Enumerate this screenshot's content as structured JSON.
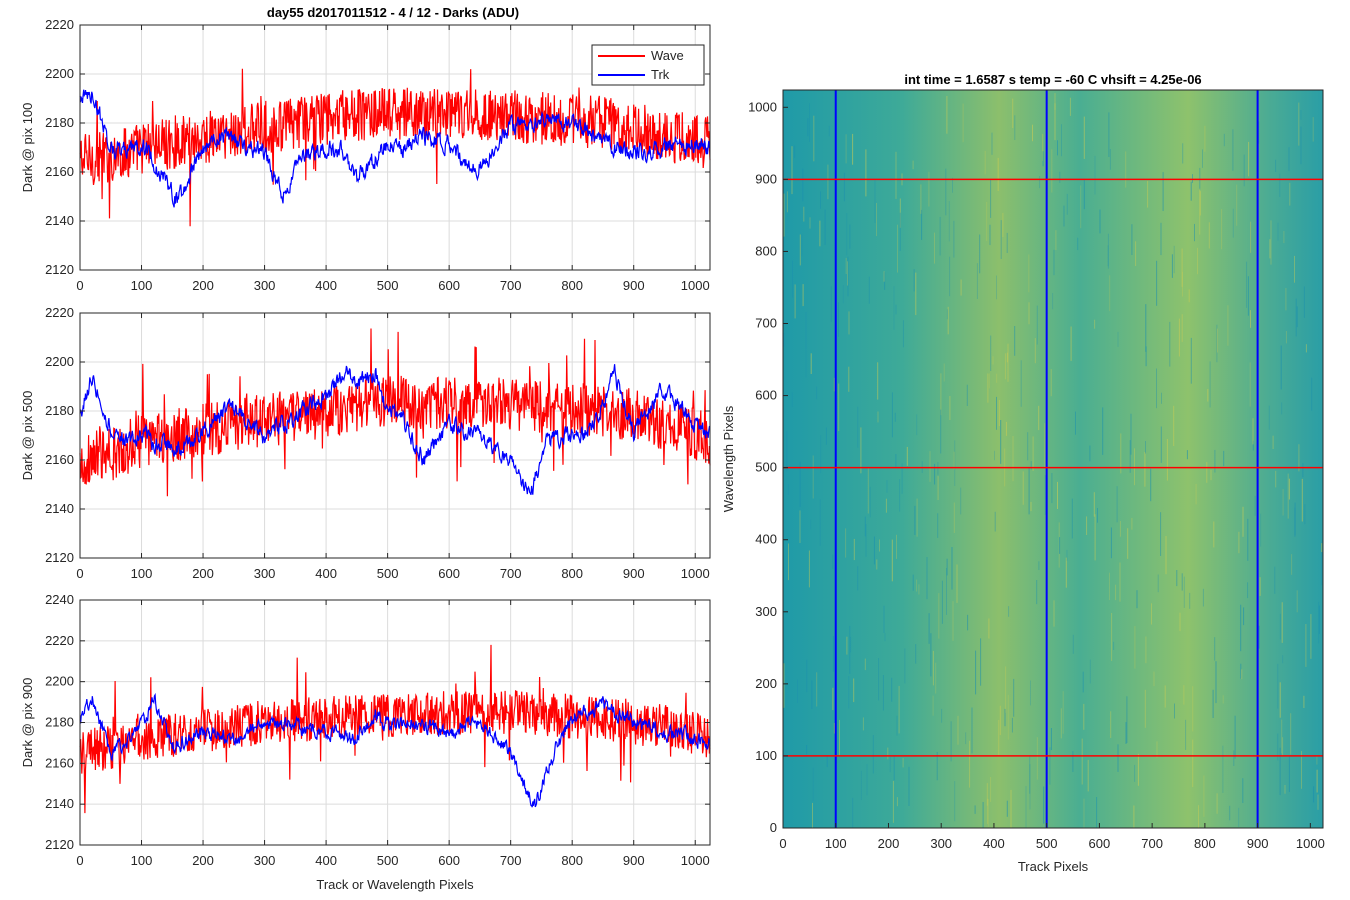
{
  "figure": {
    "title": "day55 d2017011512 - 4 / 12 - Darks (ADU)",
    "colors": {
      "wave": "#ff0000",
      "trk": "#0000ff",
      "axis": "#262626",
      "grid": "#dcdcdc",
      "image_low": "#1f9aa8",
      "image_high": "#b8c45a"
    }
  },
  "chart_data": [
    {
      "type": "line",
      "title": "day55 d2017011512 - 4 / 12 - Darks (ADU)",
      "xlabel": "",
      "ylabel": "Dark @ pix 100",
      "xlim": [
        0,
        1024
      ],
      "ylim": [
        2120,
        2220
      ],
      "xticks": [
        0,
        100,
        200,
        300,
        400,
        500,
        600,
        700,
        800,
        900,
        1000
      ],
      "yticks": [
        2120,
        2140,
        2160,
        2180,
        2200,
        2220
      ],
      "grid": true,
      "legend": {
        "placement": "top-right",
        "entries": [
          "Wave",
          "Trk"
        ]
      },
      "series": [
        {
          "name": "Wave",
          "color": "#ff0000",
          "x": [
            0,
            50,
            100,
            150,
            200,
            250,
            300,
            350,
            400,
            450,
            500,
            550,
            600,
            650,
            700,
            750,
            800,
            850,
            900,
            950,
            1024
          ],
          "values": [
            2165,
            2166,
            2170,
            2172,
            2174,
            2176,
            2178,
            2180,
            2182,
            2183,
            2184,
            2183,
            2184,
            2183,
            2183,
            2182,
            2181,
            2180,
            2178,
            2175,
            2172
          ]
        },
        {
          "name": "Trk",
          "color": "#0000ff",
          "x": [
            0,
            20,
            50,
            80,
            100,
            130,
            160,
            200,
            230,
            260,
            300,
            330,
            360,
            400,
            430,
            450,
            480,
            500,
            520,
            550,
            600,
            620,
            650,
            700,
            750,
            800,
            850,
            900,
            950,
            1000,
            1024
          ],
          "values": [
            2190,
            2192,
            2170,
            2168,
            2172,
            2160,
            2148,
            2170,
            2175,
            2172,
            2168,
            2150,
            2165,
            2170,
            2168,
            2158,
            2165,
            2172,
            2168,
            2175,
            2172,
            2165,
            2162,
            2178,
            2182,
            2180,
            2172,
            2168,
            2170,
            2172,
            2170
          ]
        }
      ]
    },
    {
      "type": "line",
      "xlabel": "",
      "ylabel": "Dark @ pix 500",
      "xlim": [
        0,
        1024
      ],
      "ylim": [
        2120,
        2220
      ],
      "xticks": [
        0,
        100,
        200,
        300,
        400,
        500,
        600,
        700,
        800,
        900,
        1000
      ],
      "yticks": [
        2120,
        2140,
        2160,
        2180,
        2200,
        2220
      ],
      "grid": true,
      "series": [
        {
          "name": "Wave",
          "color": "#ff0000",
          "x": [
            0,
            50,
            100,
            150,
            200,
            250,
            300,
            350,
            400,
            450,
            500,
            550,
            600,
            650,
            700,
            750,
            800,
            850,
            900,
            950,
            1024
          ],
          "values": [
            2160,
            2162,
            2168,
            2170,
            2172,
            2174,
            2176,
            2178,
            2180,
            2182,
            2184,
            2182,
            2184,
            2183,
            2182,
            2182,
            2181,
            2180,
            2178,
            2175,
            2168
          ]
        },
        {
          "name": "Trk",
          "color": "#0000ff",
          "x": [
            0,
            20,
            50,
            80,
            100,
            130,
            160,
            200,
            250,
            300,
            350,
            400,
            430,
            450,
            480,
            500,
            520,
            560,
            600,
            650,
            700,
            730,
            760,
            800,
            830,
            870,
            900,
            950,
            1000,
            1024
          ],
          "values": [
            2178,
            2195,
            2172,
            2168,
            2170,
            2166,
            2165,
            2172,
            2182,
            2168,
            2178,
            2186,
            2196,
            2190,
            2196,
            2180,
            2178,
            2160,
            2175,
            2170,
            2160,
            2145,
            2168,
            2170,
            2172,
            2195,
            2172,
            2190,
            2175,
            2170
          ]
        }
      ]
    },
    {
      "type": "line",
      "xlabel": "Track or Wavelength Pixels",
      "ylabel": "Dark @ pix 900",
      "xlim": [
        0,
        1024
      ],
      "ylim": [
        2120,
        2240
      ],
      "xticks": [
        0,
        100,
        200,
        300,
        400,
        500,
        600,
        700,
        800,
        900,
        1000
      ],
      "yticks": [
        2120,
        2140,
        2160,
        2180,
        2200,
        2220,
        2240
      ],
      "grid": true,
      "series": [
        {
          "name": "Wave",
          "color": "#ff0000",
          "x": [
            0,
            50,
            100,
            150,
            200,
            250,
            300,
            350,
            400,
            450,
            500,
            550,
            600,
            650,
            700,
            750,
            800,
            850,
            900,
            950,
            1024
          ],
          "values": [
            2165,
            2168,
            2172,
            2174,
            2176,
            2178,
            2180,
            2181,
            2182,
            2183,
            2184,
            2184,
            2185,
            2186,
            2185,
            2184,
            2183,
            2182,
            2180,
            2178,
            2172
          ]
        },
        {
          "name": "Trk",
          "color": "#0000ff",
          "x": [
            0,
            20,
            50,
            80,
            100,
            120,
            150,
            200,
            250,
            300,
            350,
            400,
            450,
            480,
            500,
            550,
            600,
            650,
            700,
            720,
            740,
            770,
            800,
            850,
            900,
            950,
            1000,
            1024
          ],
          "values": [
            2180,
            2192,
            2165,
            2172,
            2178,
            2192,
            2168,
            2175,
            2172,
            2180,
            2178,
            2176,
            2172,
            2185,
            2178,
            2180,
            2175,
            2180,
            2165,
            2150,
            2140,
            2165,
            2182,
            2188,
            2180,
            2175,
            2172,
            2170
          ]
        }
      ]
    },
    {
      "type": "heatmap",
      "title": "int time = 1.6587 s    temp = -60 C    vhsift = 4.25e-06",
      "xlabel": "Track Pixels",
      "ylabel": "Wavelength Pixels",
      "xlim": [
        0,
        1024
      ],
      "ylim": [
        0,
        1024
      ],
      "xticks": [
        0,
        100,
        200,
        300,
        400,
        500,
        600,
        700,
        800,
        900,
        1000
      ],
      "yticks": [
        0,
        100,
        200,
        300,
        400,
        500,
        600,
        700,
        800,
        900,
        1000
      ],
      "vertical_markers": [
        100,
        500,
        900
      ],
      "horizontal_markers": [
        100,
        500,
        900
      ],
      "vertical_marker_color": "#0000ff",
      "horizontal_marker_color": "#ff0000"
    }
  ]
}
